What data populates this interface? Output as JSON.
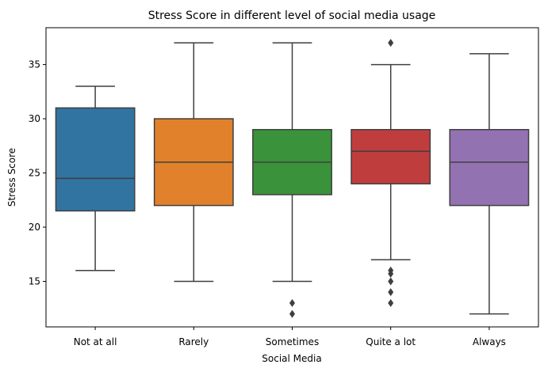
{
  "chart_data": {
    "type": "boxplot",
    "title": "Stress Score in different level of social media usage",
    "xlabel": "Social Media",
    "ylabel": "Stress Score",
    "ylim": [
      10.8,
      38.4
    ],
    "yticks": [
      15,
      20,
      25,
      30,
      35
    ],
    "grid": false,
    "categories": [
      "Not at all",
      "Rarely",
      "Sometimes",
      "Quite a lot",
      "Always"
    ],
    "colors": [
      "#3274a1",
      "#e1812c",
      "#3a923a",
      "#c03d3e",
      "#9372b2"
    ],
    "boxes": [
      {
        "whisker_low": 16,
        "q1": 21.5,
        "median": 24.5,
        "q3": 31,
        "whisker_high": 33,
        "outliers": []
      },
      {
        "whisker_low": 15,
        "q1": 22,
        "median": 26,
        "q3": 30,
        "whisker_high": 37,
        "outliers": []
      },
      {
        "whisker_low": 15,
        "q1": 23,
        "median": 26,
        "q3": 29,
        "whisker_high": 37,
        "outliers": [
          13,
          12
        ]
      },
      {
        "whisker_low": 17,
        "q1": 24,
        "median": 27,
        "q3": 29,
        "whisker_high": 35,
        "outliers": [
          37,
          16,
          15.7,
          15,
          14,
          13
        ]
      },
      {
        "whisker_low": 12,
        "q1": 22,
        "median": 26,
        "q3": 29,
        "whisker_high": 36,
        "outliers": []
      }
    ]
  }
}
